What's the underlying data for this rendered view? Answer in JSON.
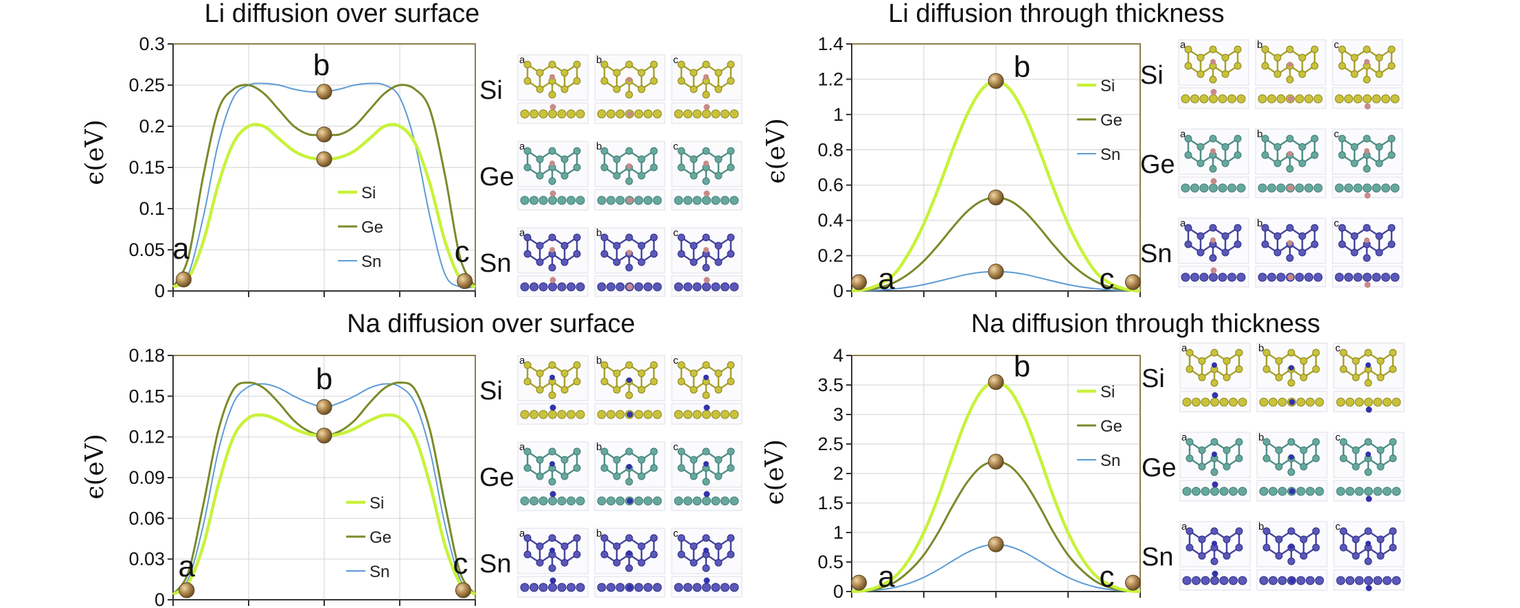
{
  "colors": {
    "Si": "#c8f23a",
    "Ge": "#7a8a2a",
    "Sn": "#5b9bd5",
    "frame": "#8a7f4a",
    "grid": "#d9d9d9",
    "marker": "#a9854a"
  },
  "chart_data": [
    {
      "type": "line",
      "title": "Li diffusion over surface",
      "ylabel": "ϵ(eV)",
      "ylim": [
        0,
        0.3
      ],
      "yticks": [
        0,
        0.05,
        0.1,
        0.15,
        0.2,
        0.25,
        0.3
      ],
      "ytick_labels": [
        "0",
        "0.05",
        "0.1",
        "0.15",
        "0.2",
        "0.25",
        "0.3"
      ],
      "xlim": [
        0,
        1
      ],
      "xticks": [
        0,
        0.25,
        0.5,
        0.75,
        1
      ],
      "legend": [
        "Si",
        "Ge",
        "Sn"
      ],
      "series": [
        {
          "name": "Si",
          "x": [
            0,
            0.05,
            0.1,
            0.15,
            0.2,
            0.25,
            0.3,
            0.35,
            0.4,
            0.45,
            0.5,
            0.55,
            0.6,
            0.65,
            0.7,
            0.75,
            0.8,
            0.85,
            0.9,
            0.95,
            1
          ],
          "y": [
            0.005,
            0.015,
            0.06,
            0.13,
            0.18,
            0.2,
            0.2,
            0.185,
            0.17,
            0.162,
            0.16,
            0.162,
            0.17,
            0.185,
            0.2,
            0.2,
            0.18,
            0.13,
            0.06,
            0.015,
            0.005
          ]
        },
        {
          "name": "Ge",
          "x": [
            0,
            0.05,
            0.1,
            0.15,
            0.2,
            0.25,
            0.3,
            0.35,
            0.4,
            0.45,
            0.5,
            0.55,
            0.6,
            0.65,
            0.7,
            0.75,
            0.8,
            0.85,
            0.9,
            0.95,
            1
          ],
          "y": [
            0.005,
            0.04,
            0.14,
            0.22,
            0.245,
            0.25,
            0.24,
            0.22,
            0.2,
            0.19,
            0.19,
            0.19,
            0.2,
            0.22,
            0.24,
            0.25,
            0.245,
            0.22,
            0.14,
            0.04,
            0.005
          ]
        },
        {
          "name": "Sn",
          "x": [
            0,
            0.05,
            0.1,
            0.15,
            0.2,
            0.25,
            0.3,
            0.35,
            0.4,
            0.45,
            0.5,
            0.55,
            0.6,
            0.65,
            0.7,
            0.75,
            0.8,
            0.85,
            0.9,
            0.95,
            1
          ],
          "y": [
            0.005,
            0.02,
            0.09,
            0.18,
            0.235,
            0.25,
            0.252,
            0.25,
            0.245,
            0.242,
            0.242,
            0.245,
            0.25,
            0.252,
            0.25,
            0.235,
            0.18,
            0.09,
            0.02,
            0.005,
            0.005
          ]
        }
      ],
      "markers": [
        {
          "label": "a",
          "x": 0.035,
          "y": 0.014
        },
        {
          "label": "",
          "x": 0.5,
          "y": 0.16
        },
        {
          "label": "",
          "x": 0.5,
          "y": 0.19
        },
        {
          "label": "b",
          "x": 0.5,
          "y": 0.242
        },
        {
          "label": "c",
          "x": 0.965,
          "y": 0.012
        }
      ],
      "panels": {
        "elements": [
          "Si",
          "Ge",
          "Sn"
        ],
        "letters": [
          "a",
          "b",
          "c"
        ]
      }
    },
    {
      "type": "line",
      "title": "Li diffusion through thickness",
      "ylabel": "ϵ(eV)",
      "ylim": [
        0,
        1.4
      ],
      "yticks": [
        0,
        0.2,
        0.4,
        0.6,
        0.8,
        1.0,
        1.2,
        1.4
      ],
      "ytick_labels": [
        "0",
        "0.2",
        "0.4",
        "0.6",
        "0.8",
        "1",
        "1.2",
        "1.4"
      ],
      "xlim": [
        0,
        1
      ],
      "xticks": [
        0,
        0.25,
        0.5,
        0.75,
        1
      ],
      "legend": [
        "Si",
        "Ge",
        "Sn"
      ],
      "series": [
        {
          "name": "Si",
          "x": [
            0,
            0.05,
            0.1,
            0.15,
            0.2,
            0.25,
            0.3,
            0.35,
            0.4,
            0.45,
            0.5,
            0.55,
            0.6,
            0.65,
            0.7,
            0.75,
            0.8,
            0.85,
            0.9,
            0.95,
            1
          ],
          "y": [
            0,
            0.01,
            0.04,
            0.1,
            0.22,
            0.38,
            0.58,
            0.8,
            1.0,
            1.14,
            1.19,
            1.14,
            1.0,
            0.8,
            0.58,
            0.38,
            0.22,
            0.1,
            0.04,
            0.01,
            0
          ]
        },
        {
          "name": "Ge",
          "x": [
            0,
            0.05,
            0.1,
            0.15,
            0.2,
            0.25,
            0.3,
            0.35,
            0.4,
            0.45,
            0.5,
            0.55,
            0.6,
            0.65,
            0.7,
            0.75,
            0.8,
            0.85,
            0.9,
            0.95,
            1
          ],
          "y": [
            0,
            0.005,
            0.02,
            0.05,
            0.1,
            0.17,
            0.26,
            0.36,
            0.45,
            0.51,
            0.53,
            0.51,
            0.45,
            0.36,
            0.26,
            0.17,
            0.1,
            0.05,
            0.02,
            0.005,
            0
          ]
        },
        {
          "name": "Sn",
          "x": [
            0,
            0.05,
            0.1,
            0.15,
            0.2,
            0.25,
            0.3,
            0.35,
            0.4,
            0.45,
            0.5,
            0.55,
            0.6,
            0.65,
            0.7,
            0.75,
            0.8,
            0.85,
            0.9,
            0.95,
            1
          ],
          "y": [
            0,
            0.002,
            0.005,
            0.012,
            0.022,
            0.036,
            0.055,
            0.075,
            0.094,
            0.106,
            0.11,
            0.106,
            0.094,
            0.075,
            0.055,
            0.036,
            0.022,
            0.012,
            0.005,
            0.002,
            0
          ]
        }
      ],
      "markers": [
        {
          "label": "a",
          "x": 0.025,
          "y": 0.05
        },
        {
          "label": "",
          "x": 0.5,
          "y": 0.11
        },
        {
          "label": "",
          "x": 0.5,
          "y": 0.53
        },
        {
          "label": "b",
          "x": 0.5,
          "y": 1.19
        },
        {
          "label": "c",
          "x": 0.975,
          "y": 0.05
        }
      ],
      "panels": {
        "elements": [
          "Si",
          "Ge",
          "Sn"
        ],
        "letters": [
          "a",
          "b",
          "c"
        ]
      }
    },
    {
      "type": "line",
      "title": "Na diffusion over surface",
      "ylabel": "ϵ(eV)",
      "ylim": [
        0,
        0.18
      ],
      "yticks": [
        0,
        0.03,
        0.06,
        0.09,
        0.12,
        0.15,
        0.18
      ],
      "ytick_labels": [
        "0",
        "0.03",
        "0.06",
        "0.09",
        "0.12",
        "0.15",
        "0.18"
      ],
      "xlim": [
        0,
        1
      ],
      "xticks": [
        0,
        0.25,
        0.5,
        0.75,
        1
      ],
      "legend": [
        "Si",
        "Ge",
        "Sn"
      ],
      "series": [
        {
          "name": "Si",
          "x": [
            0,
            0.05,
            0.1,
            0.15,
            0.2,
            0.25,
            0.3,
            0.35,
            0.4,
            0.45,
            0.5,
            0.55,
            0.6,
            0.65,
            0.7,
            0.75,
            0.8,
            0.85,
            0.9,
            0.95,
            1
          ],
          "y": [
            0.004,
            0.012,
            0.04,
            0.085,
            0.12,
            0.134,
            0.136,
            0.132,
            0.126,
            0.122,
            0.121,
            0.122,
            0.126,
            0.132,
            0.136,
            0.134,
            0.12,
            0.085,
            0.04,
            0.012,
            0.004
          ]
        },
        {
          "name": "Ge",
          "x": [
            0,
            0.05,
            0.1,
            0.15,
            0.2,
            0.25,
            0.3,
            0.35,
            0.4,
            0.45,
            0.5,
            0.55,
            0.6,
            0.65,
            0.7,
            0.75,
            0.8,
            0.85,
            0.9,
            0.95,
            1
          ],
          "y": [
            0.004,
            0.02,
            0.07,
            0.125,
            0.155,
            0.16,
            0.156,
            0.145,
            0.132,
            0.124,
            0.121,
            0.124,
            0.132,
            0.145,
            0.156,
            0.16,
            0.155,
            0.125,
            0.07,
            0.02,
            0.004
          ]
        },
        {
          "name": "Sn",
          "x": [
            0,
            0.05,
            0.1,
            0.15,
            0.2,
            0.25,
            0.3,
            0.35,
            0.4,
            0.45,
            0.5,
            0.55,
            0.6,
            0.65,
            0.7,
            0.75,
            0.8,
            0.85,
            0.9,
            0.95,
            1
          ],
          "y": [
            0.004,
            0.015,
            0.055,
            0.11,
            0.145,
            0.157,
            0.159,
            0.156,
            0.15,
            0.145,
            0.142,
            0.145,
            0.15,
            0.156,
            0.159,
            0.157,
            0.145,
            0.11,
            0.055,
            0.015,
            0.004
          ]
        }
      ],
      "markers": [
        {
          "label": "a",
          "x": 0.045,
          "y": 0.007
        },
        {
          "label": "",
          "x": 0.5,
          "y": 0.121
        },
        {
          "label": "b",
          "x": 0.5,
          "y": 0.142
        },
        {
          "label": "c",
          "x": 0.96,
          "y": 0.007
        }
      ],
      "panels": {
        "elements": [
          "Si",
          "Ge",
          "Sn"
        ],
        "letters": [
          "a",
          "b",
          "c"
        ]
      }
    },
    {
      "type": "line",
      "title": "Na diffusion through thickness",
      "ylabel": "ϵ(eV)",
      "ylim": [
        0,
        4
      ],
      "yticks": [
        0,
        0.5,
        1,
        1.5,
        2,
        2.5,
        3,
        3.5,
        4
      ],
      "ytick_labels": [
        "0",
        "0.5",
        "1",
        "1.5",
        "2",
        "2.5",
        "3",
        "3.5",
        "4"
      ],
      "xlim": [
        0,
        1
      ],
      "xticks": [
        0,
        0.25,
        0.5,
        0.75,
        1
      ],
      "legend": [
        "Si",
        "Ge",
        "Sn"
      ],
      "series": [
        {
          "name": "Si",
          "x": [
            0,
            0.05,
            0.1,
            0.15,
            0.2,
            0.25,
            0.3,
            0.35,
            0.4,
            0.45,
            0.5,
            0.55,
            0.6,
            0.65,
            0.7,
            0.75,
            0.8,
            0.85,
            0.9,
            0.95,
            1
          ],
          "y": [
            0,
            0.02,
            0.1,
            0.25,
            0.55,
            1.0,
            1.6,
            2.3,
            2.95,
            3.4,
            3.55,
            3.4,
            2.95,
            2.3,
            1.6,
            1.0,
            0.55,
            0.25,
            0.1,
            0.02,
            0
          ]
        },
        {
          "name": "Ge",
          "x": [
            0,
            0.05,
            0.1,
            0.15,
            0.2,
            0.25,
            0.3,
            0.35,
            0.4,
            0.45,
            0.5,
            0.55,
            0.6,
            0.65,
            0.7,
            0.75,
            0.8,
            0.85,
            0.9,
            0.95,
            1
          ],
          "y": [
            0,
            0.015,
            0.06,
            0.16,
            0.35,
            0.62,
            1.0,
            1.45,
            1.85,
            2.12,
            2.2,
            2.12,
            1.85,
            1.45,
            1.0,
            0.62,
            0.35,
            0.16,
            0.06,
            0.015,
            0
          ]
        },
        {
          "name": "Sn",
          "x": [
            0,
            0.05,
            0.1,
            0.15,
            0.2,
            0.25,
            0.3,
            0.35,
            0.4,
            0.45,
            0.5,
            0.55,
            0.6,
            0.65,
            0.7,
            0.75,
            0.8,
            0.85,
            0.9,
            0.95,
            1
          ],
          "y": [
            0,
            0.01,
            0.03,
            0.07,
            0.14,
            0.24,
            0.37,
            0.52,
            0.66,
            0.76,
            0.8,
            0.76,
            0.66,
            0.52,
            0.37,
            0.24,
            0.14,
            0.07,
            0.03,
            0.01,
            0
          ]
        }
      ],
      "markers": [
        {
          "label": "a",
          "x": 0.025,
          "y": 0.15
        },
        {
          "label": "",
          "x": 0.5,
          "y": 0.8
        },
        {
          "label": "",
          "x": 0.5,
          "y": 2.2
        },
        {
          "label": "b",
          "x": 0.5,
          "y": 3.55
        },
        {
          "label": "c",
          "x": 0.975,
          "y": 0.15
        }
      ],
      "panels": {
        "elements": [
          "Si",
          "Ge",
          "Sn"
        ],
        "letters": [
          "a",
          "b",
          "c"
        ]
      }
    }
  ]
}
